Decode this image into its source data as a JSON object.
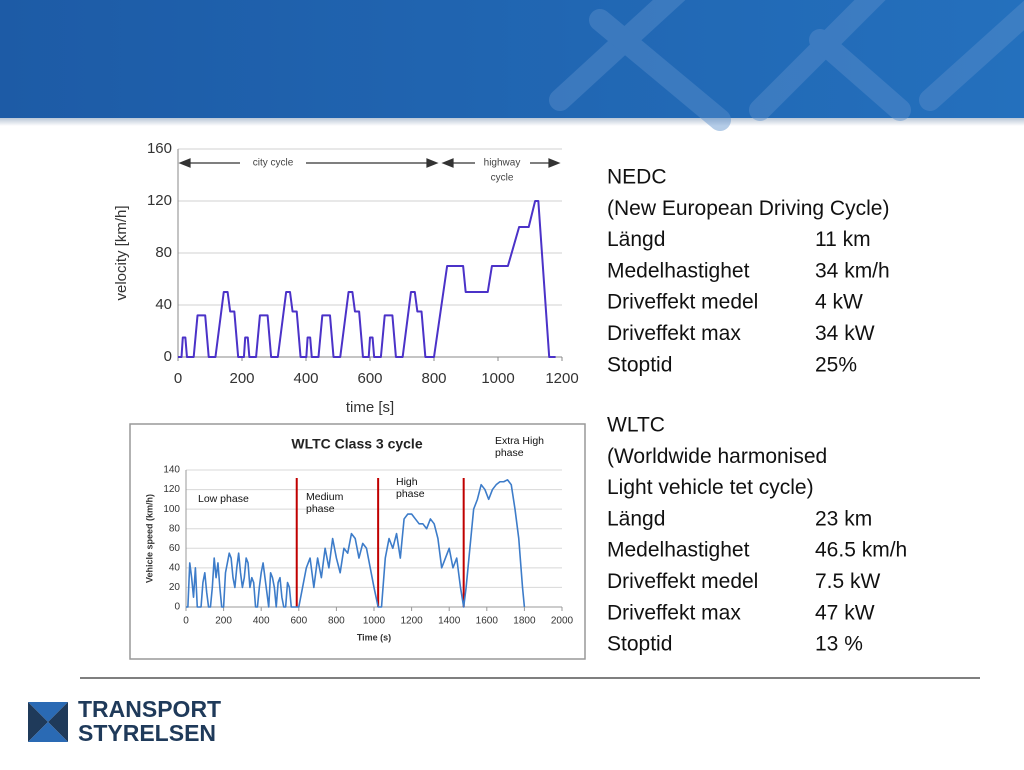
{
  "chart_data": [
    {
      "type": "line",
      "xlabel": "time [s]",
      "ylabel": "velocity [km/h]",
      "color": "#4b32c8",
      "annotations": [
        "city cycle",
        "highway",
        "cycle"
      ],
      "x": [
        0,
        11,
        15,
        23,
        28,
        49,
        61,
        85,
        96,
        117,
        143,
        155,
        163,
        176,
        188,
        195,
        206,
        210,
        218,
        223,
        244,
        256,
        280,
        291,
        312,
        338,
        350,
        358,
        371,
        383,
        390,
        401,
        405,
        413,
        418,
        439,
        451,
        475,
        486,
        507,
        533,
        545,
        553,
        566,
        578,
        585,
        596,
        600,
        608,
        613,
        634,
        646,
        670,
        681,
        702,
        728,
        740,
        748,
        761,
        773,
        780,
        800,
        841,
        891,
        899,
        968,
        981,
        1031,
        1066,
        1096,
        1116,
        1126,
        1160,
        1180
      ],
      "values": [
        0,
        0,
        15,
        15,
        0,
        0,
        32,
        32,
        0,
        0,
        50,
        50,
        35,
        35,
        0,
        0,
        0,
        15,
        15,
        0,
        0,
        32,
        32,
        0,
        0,
        50,
        50,
        35,
        35,
        0,
        0,
        0,
        15,
        15,
        0,
        0,
        32,
        32,
        0,
        0,
        50,
        50,
        35,
        35,
        0,
        0,
        0,
        15,
        15,
        0,
        0,
        32,
        32,
        0,
        0,
        50,
        50,
        35,
        35,
        0,
        0,
        0,
        70,
        70,
        50,
        50,
        70,
        70,
        100,
        100,
        120,
        120,
        0,
        0
      ],
      "xlim": [
        0,
        1200
      ],
      "xticks": [
        0,
        200,
        400,
        600,
        800,
        1000,
        1200
      ],
      "ylim": [
        0,
        160
      ],
      "yticks": [
        0,
        40,
        80,
        120,
        160
      ],
      "grid": true
    },
    {
      "type": "line",
      "title": "WLTC Class 3 cycle",
      "xlabel": "Time (s)",
      "ylabel": "Vehicle speed (km/h)",
      "color": "#3d7cc9",
      "phase_labels": [
        [
          "Low phase"
        ],
        [
          "Medium",
          "phase"
        ],
        [
          "High",
          "phase"
        ],
        [
          "Extra High",
          "phase"
        ]
      ],
      "phase_boundaries": [
        589,
        1022,
        1477
      ],
      "boundary_color": "#c00000",
      "x": [
        0,
        10,
        20,
        30,
        40,
        50,
        60,
        70,
        80,
        90,
        100,
        110,
        120,
        130,
        140,
        150,
        160,
        170,
        180,
        190,
        200,
        210,
        220,
        230,
        240,
        250,
        260,
        270,
        280,
        290,
        300,
        310,
        320,
        330,
        340,
        350,
        360,
        370,
        380,
        390,
        400,
        410,
        420,
        430,
        440,
        450,
        460,
        470,
        480,
        490,
        500,
        510,
        520,
        530,
        540,
        550,
        560,
        570,
        580,
        589,
        600,
        620,
        640,
        660,
        680,
        700,
        720,
        740,
        760,
        780,
        800,
        820,
        840,
        860,
        880,
        900,
        920,
        940,
        960,
        980,
        1000,
        1022,
        1040,
        1060,
        1080,
        1100,
        1120,
        1140,
        1160,
        1180,
        1200,
        1220,
        1240,
        1260,
        1280,
        1300,
        1320,
        1340,
        1360,
        1380,
        1400,
        1420,
        1440,
        1460,
        1477,
        1490,
        1510,
        1530,
        1550,
        1570,
        1590,
        1610,
        1630,
        1650,
        1670,
        1690,
        1710,
        1730,
        1750,
        1770,
        1790,
        1800
      ],
      "values": [
        0,
        0,
        45,
        30,
        10,
        40,
        0,
        0,
        0,
        25,
        35,
        15,
        0,
        0,
        20,
        50,
        30,
        45,
        20,
        0,
        0,
        35,
        45,
        55,
        50,
        30,
        20,
        40,
        55,
        35,
        20,
        30,
        50,
        45,
        20,
        30,
        25,
        0,
        0,
        20,
        35,
        45,
        30,
        15,
        0,
        35,
        30,
        20,
        0,
        25,
        30,
        10,
        0,
        0,
        25,
        20,
        0,
        0,
        0,
        0,
        0,
        20,
        40,
        50,
        20,
        50,
        30,
        60,
        40,
        70,
        50,
        35,
        60,
        55,
        75,
        70,
        50,
        65,
        60,
        40,
        20,
        0,
        0,
        50,
        70,
        60,
        75,
        50,
        90,
        95,
        95,
        90,
        85,
        85,
        80,
        90,
        85,
        70,
        40,
        50,
        60,
        40,
        50,
        20,
        0,
        20,
        60,
        100,
        110,
        125,
        120,
        110,
        120,
        125,
        128,
        128,
        130,
        125,
        100,
        70,
        20,
        0
      ],
      "xlim": [
        0,
        2000
      ],
      "xticks": [
        0,
        200,
        400,
        600,
        800,
        1000,
        1200,
        1400,
        1600,
        1800,
        2000
      ],
      "ylim": [
        0,
        140
      ],
      "yticks": [
        0,
        20,
        40,
        60,
        80,
        100,
        120,
        140
      ],
      "grid": true
    }
  ],
  "specs": [
    {
      "heading": "NEDC",
      "subtitle": [
        "(New European Driving Cycle)"
      ],
      "rows": [
        [
          "Längd",
          "11 km"
        ],
        [
          "Medelhastighet",
          "34 km/h"
        ],
        [
          "Driveffekt medel",
          "4 kW"
        ],
        [
          "Driveffekt max",
          "34 kW"
        ],
        [
          "Stoptid",
          "25%"
        ]
      ]
    },
    {
      "heading": "WLTC",
      "subtitle": [
        "(Worldwide harmonised",
        "Light vehicle tet cycle)"
      ],
      "rows": [
        [
          "Längd",
          "23 km"
        ],
        [
          "Medelhastighet",
          "46.5 km/h"
        ],
        [
          "Driveffekt medel",
          "7.5 kW"
        ],
        [
          "Driveffekt max",
          "47 kW"
        ],
        [
          "Stoptid",
          "13 %"
        ]
      ]
    }
  ],
  "logo": [
    "TRANSPORT",
    "STYRELSEN"
  ]
}
